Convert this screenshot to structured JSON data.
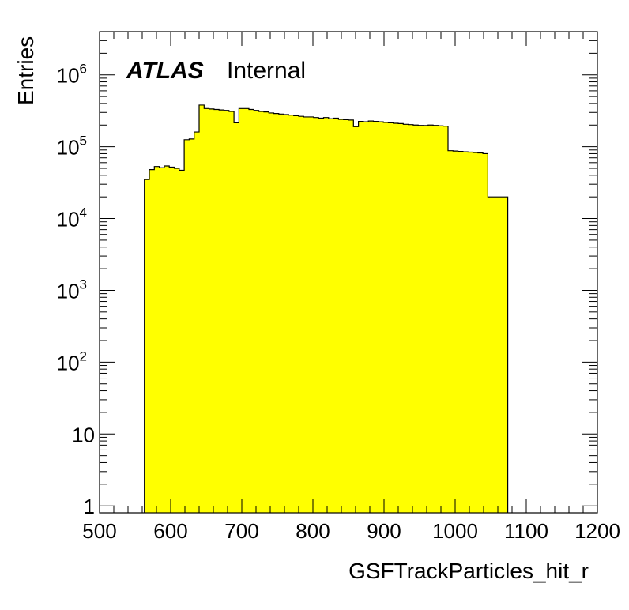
{
  "chart_data": {
    "type": "area",
    "style": "histogram",
    "xlabel": "GSFTrackParticles_hit_r",
    "ylabel": "Entries",
    "xlim": [
      500,
      1200
    ],
    "ylim": [
      0.8,
      4000000
    ],
    "y_scale": "log",
    "x_ticks": [
      "500",
      "600",
      "700",
      "800",
      "900",
      "1000",
      "1100",
      "1200"
    ],
    "y_ticks": [
      {
        "base": "1",
        "exp": ""
      },
      {
        "base": "10",
        "exp": ""
      },
      {
        "base": "10",
        "exp": "2"
      },
      {
        "base": "10",
        "exp": "3"
      },
      {
        "base": "10",
        "exp": "4"
      },
      {
        "base": "10",
        "exp": "5"
      },
      {
        "base": "10",
        "exp": "6"
      }
    ],
    "bin_edges": [
      563,
      570,
      577,
      584,
      591,
      598,
      605,
      612,
      619,
      626,
      633,
      640,
      647,
      654,
      661,
      668,
      675,
      682,
      689,
      696,
      703,
      710,
      717,
      724,
      731,
      738,
      745,
      752,
      759,
      766,
      773,
      780,
      787,
      794,
      801,
      808,
      815,
      822,
      829,
      836,
      843,
      850,
      857,
      864,
      871,
      878,
      885,
      892,
      899,
      906,
      913,
      920,
      927,
      934,
      941,
      948,
      955,
      962,
      969,
      976,
      983,
      990,
      997,
      1004,
      1011,
      1018,
      1025,
      1032,
      1039,
      1046,
      1053,
      1060,
      1067,
      1074
    ],
    "values": [
      35000,
      48000,
      53000,
      51000,
      54000,
      52000,
      50000,
      47000,
      125000,
      128000,
      160000,
      380000,
      340000,
      335000,
      330000,
      325000,
      320000,
      310000,
      215000,
      340000,
      340000,
      330000,
      320000,
      310000,
      305000,
      295000,
      290000,
      285000,
      280000,
      275000,
      270000,
      265000,
      260000,
      260000,
      255000,
      250000,
      255000,
      245000,
      250000,
      240000,
      238000,
      235000,
      190000,
      225000,
      222000,
      228000,
      225000,
      222000,
      218000,
      215000,
      212000,
      210000,
      205000,
      203000,
      200000,
      198000,
      197000,
      200000,
      198000,
      195000,
      193000,
      88000,
      87000,
      86000,
      85000,
      84000,
      83000,
      82000,
      80000,
      20000,
      20000,
      20000,
      20000
    ],
    "fill_color": "#ffff00",
    "line_color": "#000000",
    "grid": false,
    "legend": "none"
  },
  "annotations": {
    "atlas": "ATLAS",
    "internal": "Internal"
  }
}
